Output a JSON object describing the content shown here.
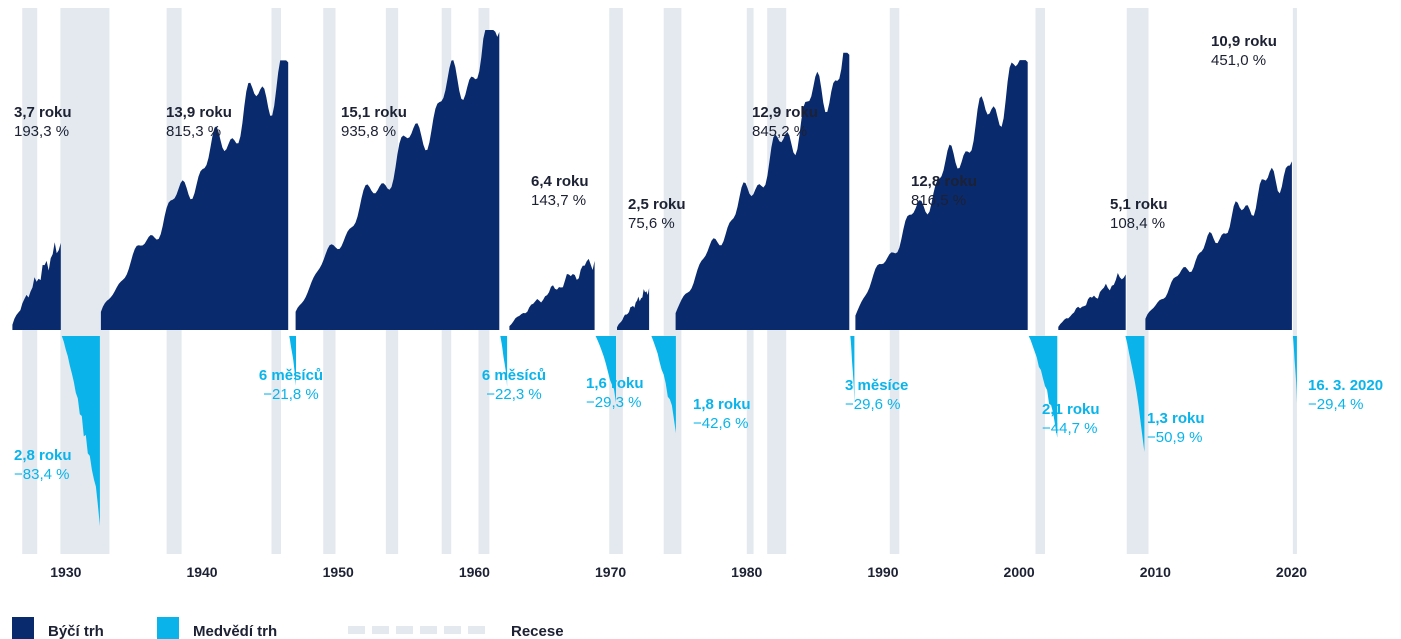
{
  "chart_data": {
    "type": "area",
    "title": "",
    "xlabel": "",
    "ylabel": "",
    "xlim": [
      1925.9,
      2022.9
    ],
    "x_ticks": [
      "1930",
      "1940",
      "1950",
      "1960",
      "1970",
      "1980",
      "1990",
      "2000",
      "2010",
      "2020"
    ],
    "colors": {
      "bull": "#0a2a6e",
      "bear": "#0ab4ea",
      "recession": "#e3e9ef",
      "bull_text": "#1c2133",
      "bear_text": "#0ab4ea"
    },
    "legend": {
      "bull": "Býčí trh",
      "bear": "Medvědí trh",
      "recession": "Recese"
    },
    "recessions": [
      [
        1926.8,
        1927.9
      ],
      [
        1929.6,
        1933.2
      ],
      [
        1937.4,
        1938.5
      ],
      [
        1945.1,
        1945.8
      ],
      [
        1948.9,
        1949.8
      ],
      [
        1953.5,
        1954.4
      ],
      [
        1957.6,
        1958.3
      ],
      [
        1960.3,
        1961.1
      ],
      [
        1969.9,
        1970.9
      ],
      [
        1973.9,
        1975.2
      ],
      [
        1980.0,
        1980.5
      ],
      [
        1981.5,
        1982.9
      ],
      [
        1990.5,
        1991.2
      ],
      [
        2001.2,
        2001.9
      ],
      [
        2007.9,
        2009.5
      ],
      [
        2020.1,
        2020.4
      ]
    ],
    "bull_markets": [
      {
        "start": 1926.0,
        "end": 1929.7,
        "duration": "3,7 roku",
        "return_pct": 193.3,
        "label_value": "193,3 %"
      },
      {
        "start": 1932.5,
        "end": 1946.4,
        "duration": "13,9 roku",
        "return_pct": 815.3,
        "label_value": "815,3 %"
      },
      {
        "start": 1946.8,
        "end": 1961.9,
        "duration": "15,1 roku",
        "return_pct": 935.8,
        "label_value": "935,8 %"
      },
      {
        "start": 1962.5,
        "end": 1968.9,
        "duration": "6,4 roku",
        "return_pct": 143.7,
        "label_value": "143,7 %"
      },
      {
        "start": 1970.4,
        "end": 1972.9,
        "duration": "2,5 roku",
        "return_pct": 75.6,
        "label_value": "75,6 %"
      },
      {
        "start": 1974.7,
        "end": 1987.6,
        "duration": "12,9 roku",
        "return_pct": 845.2,
        "label_value": "845,2 %"
      },
      {
        "start": 1987.9,
        "end": 2000.7,
        "duration": "12,8 roku",
        "return_pct": 816.5,
        "label_value": "816,5 %"
      },
      {
        "start": 2002.8,
        "end": 2007.9,
        "duration": "5,1 roku",
        "return_pct": 108.4,
        "label_value": "108,4 %"
      },
      {
        "start": 2009.2,
        "end": 2020.1,
        "duration": "10,9 roku",
        "return_pct": 451.0,
        "label_value": "451,0 %"
      }
    ],
    "bear_markets": [
      {
        "start": 1929.7,
        "end": 1932.5,
        "duration": "2,8 roku",
        "return_pct": -83.4,
        "label_value": "−83,4 %"
      },
      {
        "start": 1946.4,
        "end": 1946.9,
        "duration": "6 měsíců",
        "return_pct": -21.8,
        "label_value": "−21,8 %"
      },
      {
        "start": 1961.9,
        "end": 1962.4,
        "duration": "6 měsíců",
        "return_pct": -22.3,
        "label_value": "−22,3 %"
      },
      {
        "start": 1968.9,
        "end": 1970.4,
        "duration": "1,6 roku",
        "return_pct": -29.3,
        "label_value": "−29,3 %"
      },
      {
        "start": 1973.0,
        "end": 1974.8,
        "duration": "1,8 roku",
        "return_pct": -42.6,
        "label_value": "−42,6 %"
      },
      {
        "start": 1987.6,
        "end": 1987.9,
        "duration": "3 měsíce",
        "return_pct": -29.6,
        "label_value": "−29,6 %"
      },
      {
        "start": 2000.7,
        "end": 2002.8,
        "duration": "2,1 roku",
        "return_pct": -44.7,
        "label_value": "−44,7 %"
      },
      {
        "start": 2007.8,
        "end": 2009.2,
        "duration": "1,3 roku",
        "return_pct": -50.9,
        "label_value": "−50,9 %"
      },
      {
        "start": 2020.1,
        "end": 2020.3,
        "duration": "16. 3. 2020",
        "return_pct": -29.4,
        "label_value": "−29,4 %"
      }
    ]
  }
}
